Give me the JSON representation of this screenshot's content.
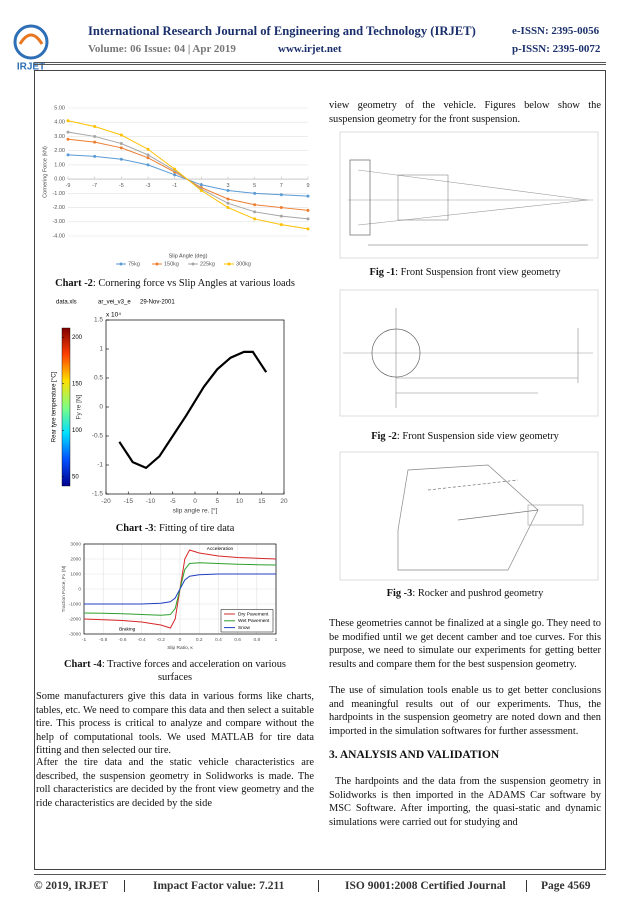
{
  "header": {
    "journal": "International Research Journal of Engineering and Technology (IRJET)",
    "e_issn": "e-ISSN: 2395-0056",
    "volume": "Volume: 06 Issue: 04 | Apr 2019",
    "website": "www.irjet.net",
    "p_issn": "p-ISSN: 2395-0072",
    "logo": "IRJET"
  },
  "charts": [
    {
      "type": "line",
      "y_label": "Cornering Force (kN)",
      "x_label": "Slip Angle (deg)",
      "x": [
        -9,
        -7,
        -5,
        -3,
        -1,
        1,
        3,
        5,
        7,
        9
      ],
      "xlim": [
        -9,
        9
      ],
      "xticks": [
        -9,
        -7,
        -5,
        -3,
        -1,
        1,
        3,
        5,
        7,
        9
      ],
      "ylim": [
        -4,
        5
      ],
      "yticks": [
        {
          "value": -4,
          "label": "-4.00"
        },
        {
          "value": -3,
          "label": "-3.00"
        },
        {
          "value": -2,
          "label": "-2.00"
        },
        {
          "value": -1,
          "label": "-1.00"
        },
        {
          "value": 0,
          "label": "0.00"
        },
        {
          "value": 1,
          "label": "1.00"
        },
        {
          "value": 2,
          "label": "2.00"
        },
        {
          "value": 3,
          "label": "3.00"
        },
        {
          "value": 4,
          "label": "4.00"
        },
        {
          "value": 5,
          "label": "5.00"
        }
      ],
      "grid": true,
      "x_axis_position": "zero",
      "markers": true,
      "legend": "bottom",
      "series": [
        {
          "name": "75kg",
          "color": "#5b9bd5",
          "values": [
            1.7,
            1.6,
            1.4,
            1.0,
            0.3,
            -0.4,
            -0.8,
            -1.0,
            -1.1,
            -1.2
          ]
        },
        {
          "name": "150kg",
          "color": "#ed7d31",
          "values": [
            2.8,
            2.6,
            2.2,
            1.5,
            0.5,
            -0.6,
            -1.4,
            -1.8,
            -2.0,
            -2.2
          ]
        },
        {
          "name": "225kg",
          "color": "#a5a5a5",
          "values": [
            3.3,
            3.0,
            2.5,
            1.7,
            0.6,
            -0.7,
            -1.7,
            -2.3,
            -2.6,
            -2.8
          ]
        },
        {
          "name": "300kg",
          "color": "#ffc000",
          "values": [
            4.1,
            3.7,
            3.1,
            2.1,
            0.7,
            -0.8,
            -2.0,
            -2.8,
            -3.2,
            -3.5
          ]
        }
      ]
    },
    {
      "type": "line",
      "y_label": "Fy re [N]",
      "x_label": "slip angle re. [°]",
      "y_multiplier": "x 10⁴",
      "annotations": [
        "data.xls",
        "ar_vei_v3_e",
        "29-Nov-2001"
      ],
      "x": [
        -17,
        -14,
        -11,
        -8,
        -5,
        -2,
        0,
        2,
        5,
        8,
        11,
        13,
        16
      ],
      "xlim": [
        -20,
        20
      ],
      "xticks": [
        -20,
        -15,
        -10,
        -5,
        0,
        5,
        10,
        15,
        20
      ],
      "ylim": [
        -1.5,
        1.5
      ],
      "yticks": [
        -1.5,
        -1,
        -0.5,
        0,
        0.5,
        1,
        1.5
      ],
      "grid": false,
      "series": [
        {
          "color": "#000000",
          "values": [
            -0.6,
            -0.95,
            -1.05,
            -0.85,
            -0.5,
            -0.15,
            0.1,
            0.35,
            0.65,
            0.85,
            0.95,
            0.95,
            0.6
          ]
        }
      ],
      "colorbar": {
        "label": "Rear tyre temperature [°C]",
        "lim": [
          40,
          210
        ],
        "ticks": [
          50,
          100,
          150,
          200
        ]
      }
    },
    {
      "type": "line",
      "y_label": "Traction Force, Fx (N)",
      "x_label": "Slip Ratio, κ",
      "annotations": [
        "Acceleration",
        "Braking"
      ],
      "x": [
        -1,
        -0.8,
        -0.6,
        -0.4,
        -0.2,
        -0.1,
        -0.05,
        0,
        0.05,
        0.1,
        0.2,
        0.4,
        0.6,
        0.8,
        1
      ],
      "xlim": [
        -1,
        1
      ],
      "xticks": [
        -1,
        -0.8,
        -0.6,
        -0.4,
        -0.2,
        0,
        0.2,
        0.4,
        0.6,
        0.8,
        1
      ],
      "ylim": [
        -3000,
        3000
      ],
      "yticks": [
        -3000,
        -2000,
        -1000,
        0,
        1000,
        2000,
        3000
      ],
      "grid": true,
      "legend": "lower right",
      "series": [
        {
          "name": "Dry Pavement",
          "color": "#d62728",
          "values": [
            -2000,
            -2050,
            -2100,
            -2200,
            -2400,
            -2600,
            -2000,
            0,
            2000,
            2600,
            2400,
            2200,
            2100,
            2050,
            2000
          ]
        },
        {
          "name": "Wet Pavement",
          "color": "#2ca02c",
          "values": [
            -1600,
            -1620,
            -1650,
            -1700,
            -1750,
            -1700,
            -1300,
            0,
            1300,
            1700,
            1750,
            1700,
            1650,
            1620,
            1600
          ]
        },
        {
          "name": "Snow",
          "color": "#1f3fbf",
          "values": [
            -1000,
            -1000,
            -1000,
            -1000,
            -950,
            -850,
            -600,
            0,
            600,
            850,
            950,
            1000,
            1000,
            1000,
            1000
          ]
        }
      ]
    }
  ],
  "captions": [
    {
      "label": "Chart -2",
      "text": ": Cornering force vs Slip Angles at various loads"
    },
    {
      "label": "Chart -3",
      "text": ": Fitting of tire data"
    },
    {
      "label": "Chart -4",
      "text": ": Tractive forces and acceleration on various surfaces"
    },
    {
      "label": "Fig -1",
      "text": ": Front Suspension front view geometry"
    },
    {
      "label": "Fig -2",
      "text": ": Front Suspension side view geometry"
    },
    {
      "label": "Fig -3",
      "text": ": Rocker and pushrod geometry"
    }
  ],
  "left_paragraphs": [
    "Some manufacturers give this data in various forms like charts, tables, etc. We need to compare this data and then select a suitable tire. This process is critical to analyze and compare without the help of computational tools. We used MATLAB for tire data fitting and then selected our tire.",
    "After the tire data and the static vehicle characteristics are described, the suspension geometry in Solidworks is made. The roll characteristics are decided by the front view geometry and the ride characteristics are decided by the side"
  ],
  "right_intro": "view geometry of the vehicle. Figures below show the suspension geometry for the front suspension.",
  "right_paragraphs": [
    "These geometries cannot be finalized at a single go. They need to be modified until we get decent camber and toe curves. For this purpose, we need to simulate our experiments for getting better results and compare them for the best suspension geometry.",
    "The use of simulation tools enable us to get better conclusions and meaningful results out of our experiments. Thus, the hardpoints in the suspension geometry are noted down and then imported in the simulation softwares for further assessment."
  ],
  "section_heading": "3. ANALYSIS AND VALIDATION",
  "section_paragraph": "The hardpoints and the data from the suspension geometry in Solidworks is then imported in the ADAMS Car software by MSC Software. After importing, the quasi-static and dynamic simulations were carried out for studying and",
  "footer": {
    "copyright": "© 2019, IRJET",
    "impact": "Impact Factor value: 7.211",
    "iso": "ISO 9001:2008 Certified Journal",
    "page": "Page 4569"
  }
}
